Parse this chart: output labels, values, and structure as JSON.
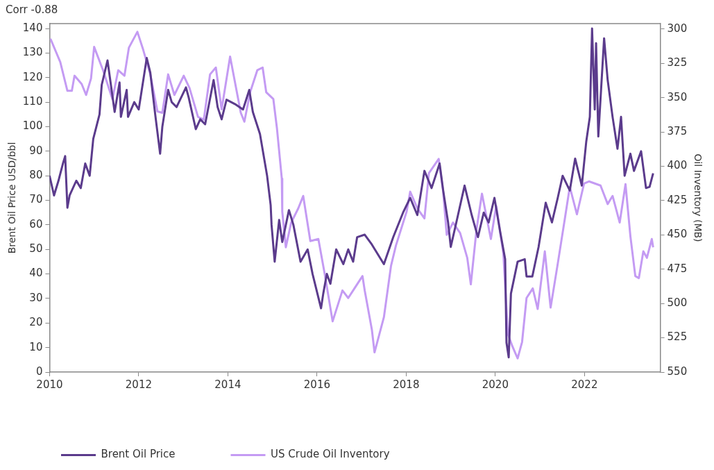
{
  "chart_data": {
    "type": "line",
    "title": "Corr -0.88",
    "ylabel": "Brent Oil Price USD/bbl",
    "y2label": "Oil Inventory (MB)",
    "xlim": [
      2010,
      2023.7
    ],
    "xticks": [
      2010,
      2012,
      2014,
      2016,
      2018,
      2020,
      2022
    ],
    "ylim": [
      0,
      142
    ],
    "yticks": [
      0,
      10,
      20,
      30,
      40,
      50,
      60,
      70,
      80,
      90,
      100,
      110,
      120,
      130,
      140
    ],
    "y2lim": [
      550,
      296
    ],
    "y2ticks": [
      300,
      325,
      350,
      375,
      400,
      425,
      450,
      475,
      500,
      525,
      550
    ],
    "grid": false,
    "legend": "bottom left",
    "series": [
      {
        "name": "Brent Oil Price",
        "color": "#5b3b8c",
        "x": [
          2010.0,
          2010.1,
          2010.2,
          2010.3,
          2010.35,
          2010.4,
          2010.45,
          2010.6,
          2010.7,
          2010.8,
          2010.9,
          2010.98,
          2011.12,
          2011.17,
          2011.3,
          2011.46,
          2011.57,
          2011.6,
          2011.73,
          2011.76,
          2011.9,
          2012.0,
          2012.18,
          2012.26,
          2012.37,
          2012.48,
          2012.53,
          2012.66,
          2012.74,
          2012.85,
          2013.06,
          2013.12,
          2013.28,
          2013.38,
          2013.49,
          2013.68,
          2013.77,
          2013.86,
          2013.97,
          2014.18,
          2014.34,
          2014.48,
          2014.56,
          2014.72,
          2014.88,
          2014.96,
          2014.98,
          2015.05,
          2015.15,
          2015.22,
          2015.37,
          2015.47,
          2015.63,
          2015.79,
          2015.9,
          2016.09,
          2016.14,
          2016.22,
          2016.3,
          2016.43,
          2016.59,
          2016.7,
          2016.81,
          2016.9,
          2017.07,
          2017.23,
          2017.5,
          2017.71,
          2017.93,
          2018.09,
          2018.25,
          2018.41,
          2018.57,
          2018.75,
          2018.83,
          2018.94,
          2019.0,
          2019.15,
          2019.31,
          2019.47,
          2019.61,
          2019.74,
          2019.85,
          2019.98,
          2020.11,
          2020.22,
          2020.25,
          2020.3,
          2020.35,
          2020.5,
          2020.66,
          2020.7,
          2020.83,
          2020.97,
          2021.13,
          2021.27,
          2021.4,
          2021.51,
          2021.67,
          2021.79,
          2021.94,
          2022.04,
          2022.12,
          2022.17,
          2022.23,
          2022.26,
          2022.31,
          2022.44,
          2022.52,
          2022.63,
          2022.74,
          2022.82,
          2022.9,
          2023.03,
          2023.11,
          2023.27,
          2023.38,
          2023.46,
          2023.54
        ],
        "values": [
          80,
          72,
          78,
          85,
          88,
          67,
          72,
          78,
          75,
          85,
          80,
          95,
          105,
          117,
          127,
          106,
          118,
          104,
          115,
          104,
          110,
          107,
          128,
          122,
          105,
          89,
          100,
          115,
          110,
          108,
          116,
          112,
          99,
          103,
          101,
          119,
          108,
          103,
          111,
          109,
          107,
          115,
          106,
          97,
          80,
          68,
          60,
          45,
          62,
          53,
          66,
          60,
          45,
          50,
          40,
          26,
          32,
          40,
          36,
          50,
          44,
          50,
          45,
          55,
          56,
          52,
          44,
          55,
          65,
          71,
          64,
          82,
          75,
          85,
          74,
          61,
          51,
          63,
          76,
          64,
          55,
          65,
          61,
          71,
          57,
          46,
          12,
          6,
          32,
          45,
          46,
          39,
          39,
          51,
          69,
          61,
          71,
          80,
          74,
          87,
          76,
          94,
          104,
          140,
          107,
          134,
          96,
          136,
          119,
          104,
          91,
          104,
          80,
          89,
          82,
          90,
          75,
          75.5,
          81
        ]
      },
      {
        "name": "US Crude Oil Inventory",
        "color": "#c49bf3",
        "axis": "y2",
        "x": [
          2010.02,
          2010.24,
          2010.4,
          2010.5,
          2010.56,
          2010.72,
          2010.82,
          2010.93,
          2011.0,
          2011.2,
          2011.41,
          2011.54,
          2011.68,
          2011.78,
          2011.97,
          2012.1,
          2012.26,
          2012.42,
          2012.53,
          2012.66,
          2012.8,
          2013.01,
          2013.14,
          2013.33,
          2013.46,
          2013.6,
          2013.73,
          2013.86,
          2014.05,
          2014.29,
          2014.37,
          2014.5,
          2014.66,
          2014.78,
          2014.86,
          2015.02,
          2015.1,
          2015.21,
          2015.22,
          2015.3,
          2015.42,
          2015.58,
          2015.69,
          2015.85,
          2016.03,
          2016.17,
          2016.35,
          2016.57,
          2016.7,
          2016.81,
          2017.02,
          2017.07,
          2017.23,
          2017.29,
          2017.5,
          2017.66,
          2017.77,
          2018.01,
          2018.09,
          2018.25,
          2018.41,
          2018.51,
          2018.73,
          2018.83,
          2018.91,
          2019.05,
          2019.21,
          2019.37,
          2019.45,
          2019.58,
          2019.7,
          2019.9,
          2020.02,
          2020.18,
          2020.28,
          2020.38,
          2020.5,
          2020.6,
          2020.7,
          2020.84,
          2020.95,
          2021.11,
          2021.24,
          2021.4,
          2021.56,
          2021.67,
          2021.83,
          2021.99,
          2022.1,
          2022.36,
          2022.52,
          2022.63,
          2022.79,
          2022.92,
          2023.03,
          2023.14,
          2023.22,
          2023.32,
          2023.4,
          2023.51,
          2023.54
        ],
        "values": [
          307,
          324,
          345,
          345,
          334,
          340,
          348,
          336,
          313,
          330,
          351,
          330,
          334,
          313.5,
          302,
          315,
          333,
          360,
          361,
          333,
          348,
          334,
          343,
          364,
          366,
          333,
          328,
          358.5,
          320,
          361,
          367.5,
          346,
          330,
          328,
          346,
          351,
          372,
          409,
          433,
          459,
          441,
          430.6,
          421.6,
          454.5,
          453,
          478,
          513,
          490.5,
          496,
          490.5,
          480,
          490.5,
          519,
          535.6,
          510,
          472.5,
          457.7,
          433,
          418.5,
          430.6,
          438,
          405,
          394.6,
          418.5,
          450,
          441,
          448.6,
          466.7,
          486,
          445.5,
          420,
          453,
          428.8,
          463.5,
          522,
          531,
          540,
          528,
          496,
          489,
          504,
          462,
          503,
          471,
          438,
          415,
          435,
          412.6,
          411,
          414,
          427.5,
          421.6,
          441,
          413,
          451,
          480,
          481.5,
          462,
          466.7,
          453,
          459
        ]
      }
    ]
  }
}
